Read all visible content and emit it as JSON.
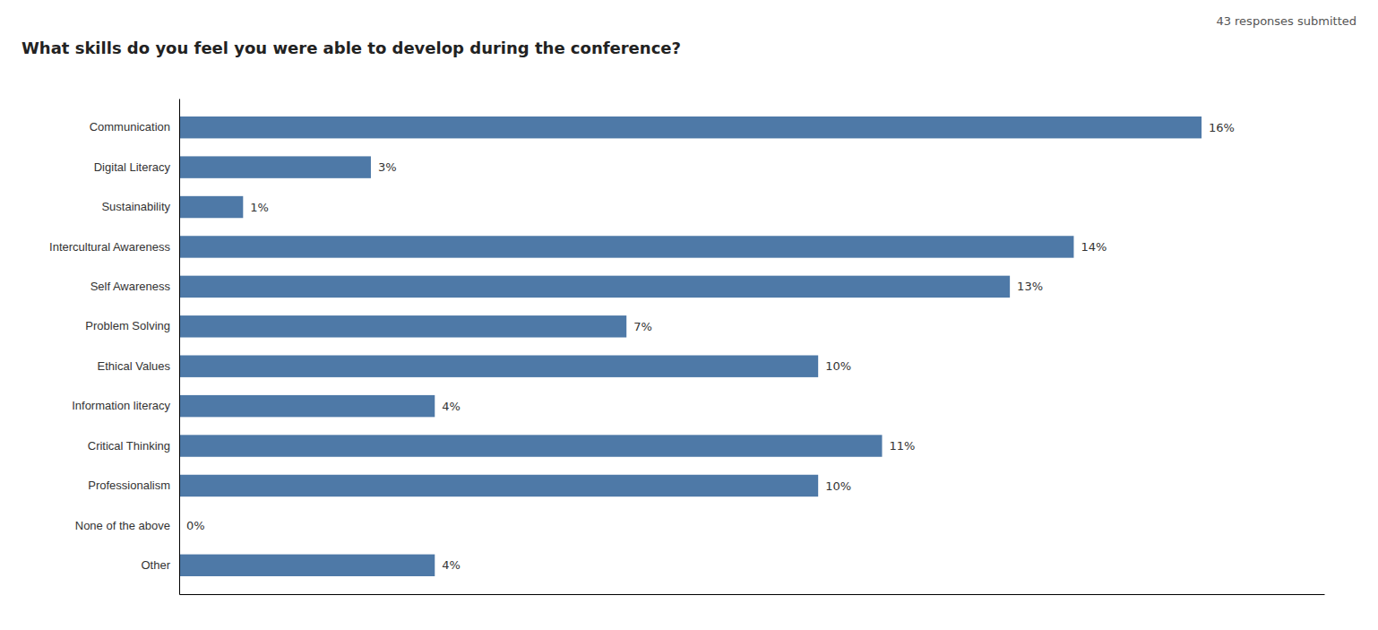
{
  "chart_data": {
    "type": "bar",
    "orientation": "horizontal",
    "title": "What skills do you feel you were able to develop during the conference?",
    "subtitle": "43 responses submitted",
    "categories": [
      "Communication",
      "Digital Literacy",
      "Sustainability",
      "Intercultural Awareness",
      "Self Awareness",
      "Problem Solving",
      "Ethical Values",
      "Information literacy",
      "Critical Thinking",
      "Professionalism",
      "None of the above",
      "Other"
    ],
    "values": [
      16,
      3,
      1,
      14,
      13,
      7,
      10,
      4,
      11,
      10,
      0,
      4
    ],
    "value_labels": [
      "16%",
      "3%",
      "1%",
      "14%",
      "13%",
      "7%",
      "10%",
      "4%",
      "11%",
      "10%",
      "0%",
      "4%"
    ],
    "data_labels": true,
    "xlim": [
      0,
      17.92
    ],
    "tick_labels": "y",
    "grid": false
  }
}
